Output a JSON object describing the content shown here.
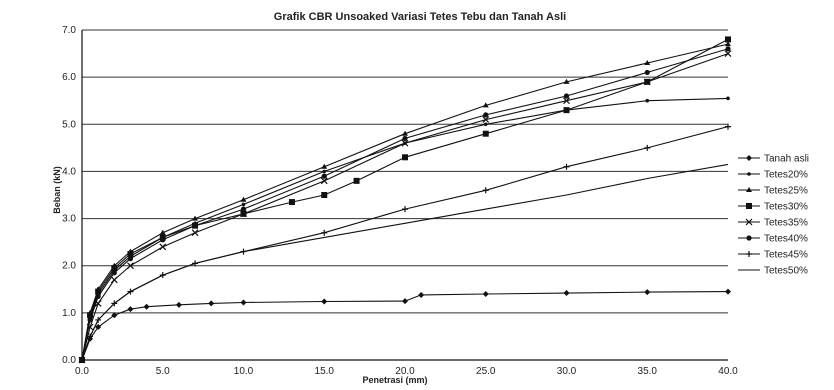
{
  "chart_data": {
    "type": "line",
    "title": "Grafik CBR Unsoaked Variasi Tetes Tebu dan Tanah Asli",
    "xlabel": "Penetrasi (mm)",
    "ylabel": "Beban (kN)",
    "xlim": [
      0,
      40
    ],
    "ylim": [
      0,
      7
    ],
    "xticks": [
      "0.0",
      "5.0",
      "10.0",
      "15.0",
      "20.0",
      "25.0",
      "30.0",
      "35.0",
      "40.0"
    ],
    "yticks": [
      "0.0",
      "1.0",
      "2.0",
      "3.0",
      "4.0",
      "5.0",
      "6.0",
      "7.0"
    ],
    "grid": true,
    "legend_position": "right",
    "series": [
      {
        "name": "Tanah asli",
        "color": "#111111",
        "marker": "diamond",
        "x": [
          0,
          0.5,
          1,
          2,
          3,
          4,
          6,
          8,
          10,
          15,
          20,
          21,
          25,
          30,
          35,
          40
        ],
        "y": [
          0,
          0.45,
          0.7,
          0.95,
          1.08,
          1.13,
          1.17,
          1.2,
          1.22,
          1.24,
          1.25,
          1.38,
          1.4,
          1.42,
          1.44,
          1.45
        ]
      },
      {
        "name": "Tetes20%",
        "color": "#111111",
        "marker": "dot",
        "x": [
          0,
          0.5,
          1,
          2,
          3,
          5,
          7,
          10,
          15,
          20,
          25,
          30,
          35,
          40
        ],
        "y": [
          0,
          0.9,
          1.4,
          1.9,
          2.2,
          2.6,
          2.9,
          3.3,
          4.0,
          4.6,
          5.0,
          5.3,
          5.5,
          5.55
        ]
      },
      {
        "name": "Tetes25%",
        "color": "#111111",
        "marker": "triangle",
        "x": [
          0,
          0.5,
          1,
          2,
          3,
          5,
          7,
          10,
          15,
          20,
          25,
          30,
          35,
          40
        ],
        "y": [
          0,
          1.0,
          1.5,
          2.0,
          2.3,
          2.7,
          3.0,
          3.4,
          4.1,
          4.8,
          5.4,
          5.9,
          6.3,
          6.7
        ]
      },
      {
        "name": "Tetes30%",
        "color": "#111111",
        "marker": "square",
        "x": [
          0,
          0.5,
          1,
          2,
          3,
          5,
          7,
          10,
          13,
          15,
          17,
          20,
          25,
          30,
          35,
          40
        ],
        "y": [
          0,
          0.95,
          1.45,
          1.95,
          2.25,
          2.6,
          2.85,
          3.1,
          3.35,
          3.5,
          3.8,
          4.3,
          4.8,
          5.3,
          5.9,
          6.8
        ]
      },
      {
        "name": "Tetes35%",
        "color": "#111111",
        "marker": "cross",
        "x": [
          0,
          0.5,
          1,
          2,
          3,
          5,
          7,
          10,
          15,
          20,
          25,
          30,
          35,
          40
        ],
        "y": [
          0,
          0.7,
          1.2,
          1.7,
          2.0,
          2.4,
          2.7,
          3.1,
          3.8,
          4.6,
          5.1,
          5.5,
          5.9,
          6.5
        ]
      },
      {
        "name": "Tetes40%",
        "color": "#111111",
        "marker": "bullet",
        "x": [
          0,
          0.5,
          1,
          2,
          3,
          5,
          7,
          10,
          15,
          20,
          25,
          30,
          35,
          40
        ],
        "y": [
          0,
          0.85,
          1.35,
          1.85,
          2.15,
          2.55,
          2.85,
          3.2,
          3.9,
          4.7,
          5.2,
          5.6,
          6.1,
          6.6
        ]
      },
      {
        "name": "Tetes45%",
        "color": "#111111",
        "marker": "plus",
        "x": [
          0,
          0.5,
          1,
          2,
          3,
          5,
          7,
          10,
          15,
          20,
          25,
          30,
          35,
          40
        ],
        "y": [
          0,
          0.5,
          0.85,
          1.2,
          1.45,
          1.8,
          2.05,
          2.3,
          2.7,
          3.2,
          3.6,
          4.1,
          4.5,
          4.95
        ]
      },
      {
        "name": "Tetes50%",
        "color": "#111111",
        "marker": "none",
        "x": [
          0,
          0.5,
          1,
          2,
          3,
          5,
          7,
          10,
          15,
          20,
          25,
          30,
          35,
          40
        ],
        "y": [
          0,
          0.5,
          0.85,
          1.2,
          1.45,
          1.8,
          2.05,
          2.3,
          2.6,
          2.9,
          3.2,
          3.5,
          3.85,
          4.15
        ]
      }
    ]
  }
}
